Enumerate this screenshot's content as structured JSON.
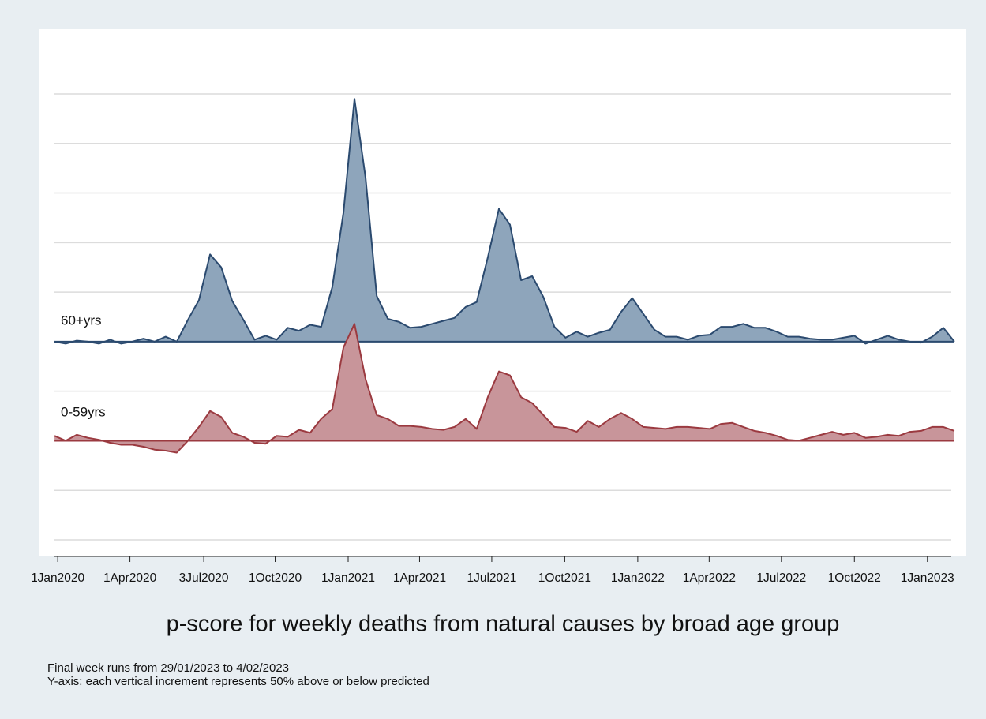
{
  "chart_data": {
    "type": "area",
    "x_label": "p-score for weekly deaths from natural causes by broad age group",
    "notes": [
      "Final week runs from 29/01/2023 to 4/02/2023",
      "Y-axis: each vertical increment represents 50% above or below predicted"
    ],
    "x": [
      "2019-12-28",
      "2020-01-11",
      "2020-01-25",
      "2020-02-08",
      "2020-02-22",
      "2020-03-07",
      "2020-03-21",
      "2020-04-04",
      "2020-04-18",
      "2020-05-02",
      "2020-05-16",
      "2020-05-30",
      "2020-06-13",
      "2020-06-27",
      "2020-07-11",
      "2020-07-25",
      "2020-08-08",
      "2020-08-22",
      "2020-09-05",
      "2020-09-19",
      "2020-10-03",
      "2020-10-17",
      "2020-10-31",
      "2020-11-14",
      "2020-11-28",
      "2020-12-12",
      "2020-12-26",
      "2021-01-09",
      "2021-01-23",
      "2021-02-06",
      "2021-02-20",
      "2021-03-06",
      "2021-03-20",
      "2021-04-03",
      "2021-04-17",
      "2021-05-01",
      "2021-05-15",
      "2021-05-29",
      "2021-06-12",
      "2021-06-26",
      "2021-07-10",
      "2021-07-24",
      "2021-08-07",
      "2021-08-21",
      "2021-09-04",
      "2021-09-18",
      "2021-10-02",
      "2021-10-16",
      "2021-10-30",
      "2021-11-13",
      "2021-11-27",
      "2021-12-11",
      "2021-12-25",
      "2022-01-08",
      "2022-01-22",
      "2022-02-05",
      "2022-02-19",
      "2022-03-05",
      "2022-03-19",
      "2022-04-02",
      "2022-04-16",
      "2022-04-30",
      "2022-05-14",
      "2022-05-28",
      "2022-06-11",
      "2022-06-25",
      "2022-07-09",
      "2022-07-23",
      "2022-08-06",
      "2022-08-20",
      "2022-09-03",
      "2022-09-17",
      "2022-10-01",
      "2022-10-15",
      "2022-10-29",
      "2022-11-12",
      "2022-11-26",
      "2022-12-10",
      "2022-12-24",
      "2023-01-07",
      "2023-01-21",
      "2023-02-04"
    ],
    "xlim": [
      "2019-12-09",
      "2023-02-18"
    ],
    "xticks": [
      {
        "value": "2020-01-01",
        "label": "1Jan2020"
      },
      {
        "value": "2020-04-01",
        "label": "1Apr2020"
      },
      {
        "value": "2020-07-03",
        "label": "3Jul2020"
      },
      {
        "value": "2020-10-01",
        "label": "1Oct2020"
      },
      {
        "value": "2021-01-01",
        "label": "1Jan2021"
      },
      {
        "value": "2021-04-01",
        "label": "1Apr2021"
      },
      {
        "value": "2021-07-01",
        "label": "1Jul2021"
      },
      {
        "value": "2021-10-01",
        "label": "1Oct2021"
      },
      {
        "value": "2022-01-01",
        "label": "1Jan2022"
      },
      {
        "value": "2022-04-01",
        "label": "1Apr2022"
      },
      {
        "value": "2022-07-01",
        "label": "1Jul2022"
      },
      {
        "value": "2022-10-01",
        "label": "1Oct2022"
      },
      {
        "value": "2023-01-01",
        "label": "1Jan2023"
      }
    ],
    "ylim": [
      -200,
      250
    ],
    "yticks": [
      -200,
      -150,
      -100,
      -50,
      0,
      50,
      100,
      150,
      200,
      250
    ],
    "grid": true,
    "series": [
      {
        "name": "60+yrs",
        "color": "#2b4a6f",
        "fill": "#8ea5bb",
        "values": [
          0,
          -2,
          1,
          0,
          -2,
          2,
          -2,
          0,
          3,
          0,
          5,
          0,
          22,
          42,
          88,
          75,
          41,
          22,
          2,
          6,
          2,
          14,
          11,
          17,
          15,
          55,
          130,
          245,
          165,
          46,
          23,
          20,
          14,
          15,
          18,
          21,
          24,
          35,
          40,
          85,
          134,
          118,
          62,
          66,
          45,
          15,
          4,
          10,
          5,
          9,
          12,
          30,
          44,
          28,
          12,
          5,
          5,
          2,
          6,
          7,
          15,
          15,
          18,
          14,
          14,
          10,
          5,
          5,
          3,
          2,
          2,
          4,
          6,
          -2,
          2,
          6,
          2,
          0,
          -1,
          5,
          14,
          0
        ]
      },
      {
        "name": "0-59yrs",
        "color": "#9b3a40",
        "fill": "#c8959a",
        "ylim": [
          -100,
          350
        ],
        "values": [
          5,
          0,
          6,
          3,
          1,
          -2,
          -4,
          -4,
          -6,
          -9,
          -10,
          -12,
          0,
          14,
          30,
          24,
          8,
          4,
          -2,
          -3,
          5,
          4,
          11,
          8,
          22,
          32,
          94,
          118,
          62,
          26,
          22,
          15,
          15,
          14,
          12,
          11,
          14,
          22,
          12,
          44,
          70,
          66,
          44,
          38,
          26,
          14,
          13,
          9,
          20,
          14,
          22,
          28,
          22,
          14,
          13,
          12,
          14,
          14,
          13,
          12,
          17,
          18,
          14,
          10,
          8,
          5,
          1,
          0,
          3,
          6,
          9,
          6,
          8,
          3,
          4,
          6,
          5,
          9,
          10,
          14,
          14,
          10
        ]
      }
    ]
  }
}
